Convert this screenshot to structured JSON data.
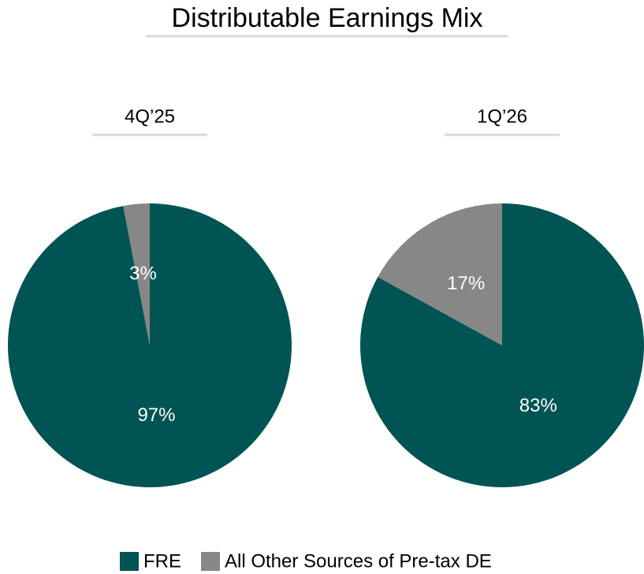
{
  "title": "Distributable Earnings Mix",
  "chart_data": [
    {
      "type": "pie",
      "title": "4Q’25",
      "categories": [
        "FRE",
        "All Other Sources of Pre-tax DE"
      ],
      "values": [
        97,
        3
      ],
      "value_labels": [
        "97%",
        "3%"
      ],
      "colors": [
        "#005454",
        "#878787"
      ]
    },
    {
      "type": "pie",
      "title": "1Q’26",
      "categories": [
        "FRE",
        "All Other Sources of Pre-tax DE"
      ],
      "values": [
        83,
        17
      ],
      "value_labels": [
        "83%",
        "17%"
      ],
      "colors": [
        "#005454",
        "#878787"
      ]
    }
  ]
}
